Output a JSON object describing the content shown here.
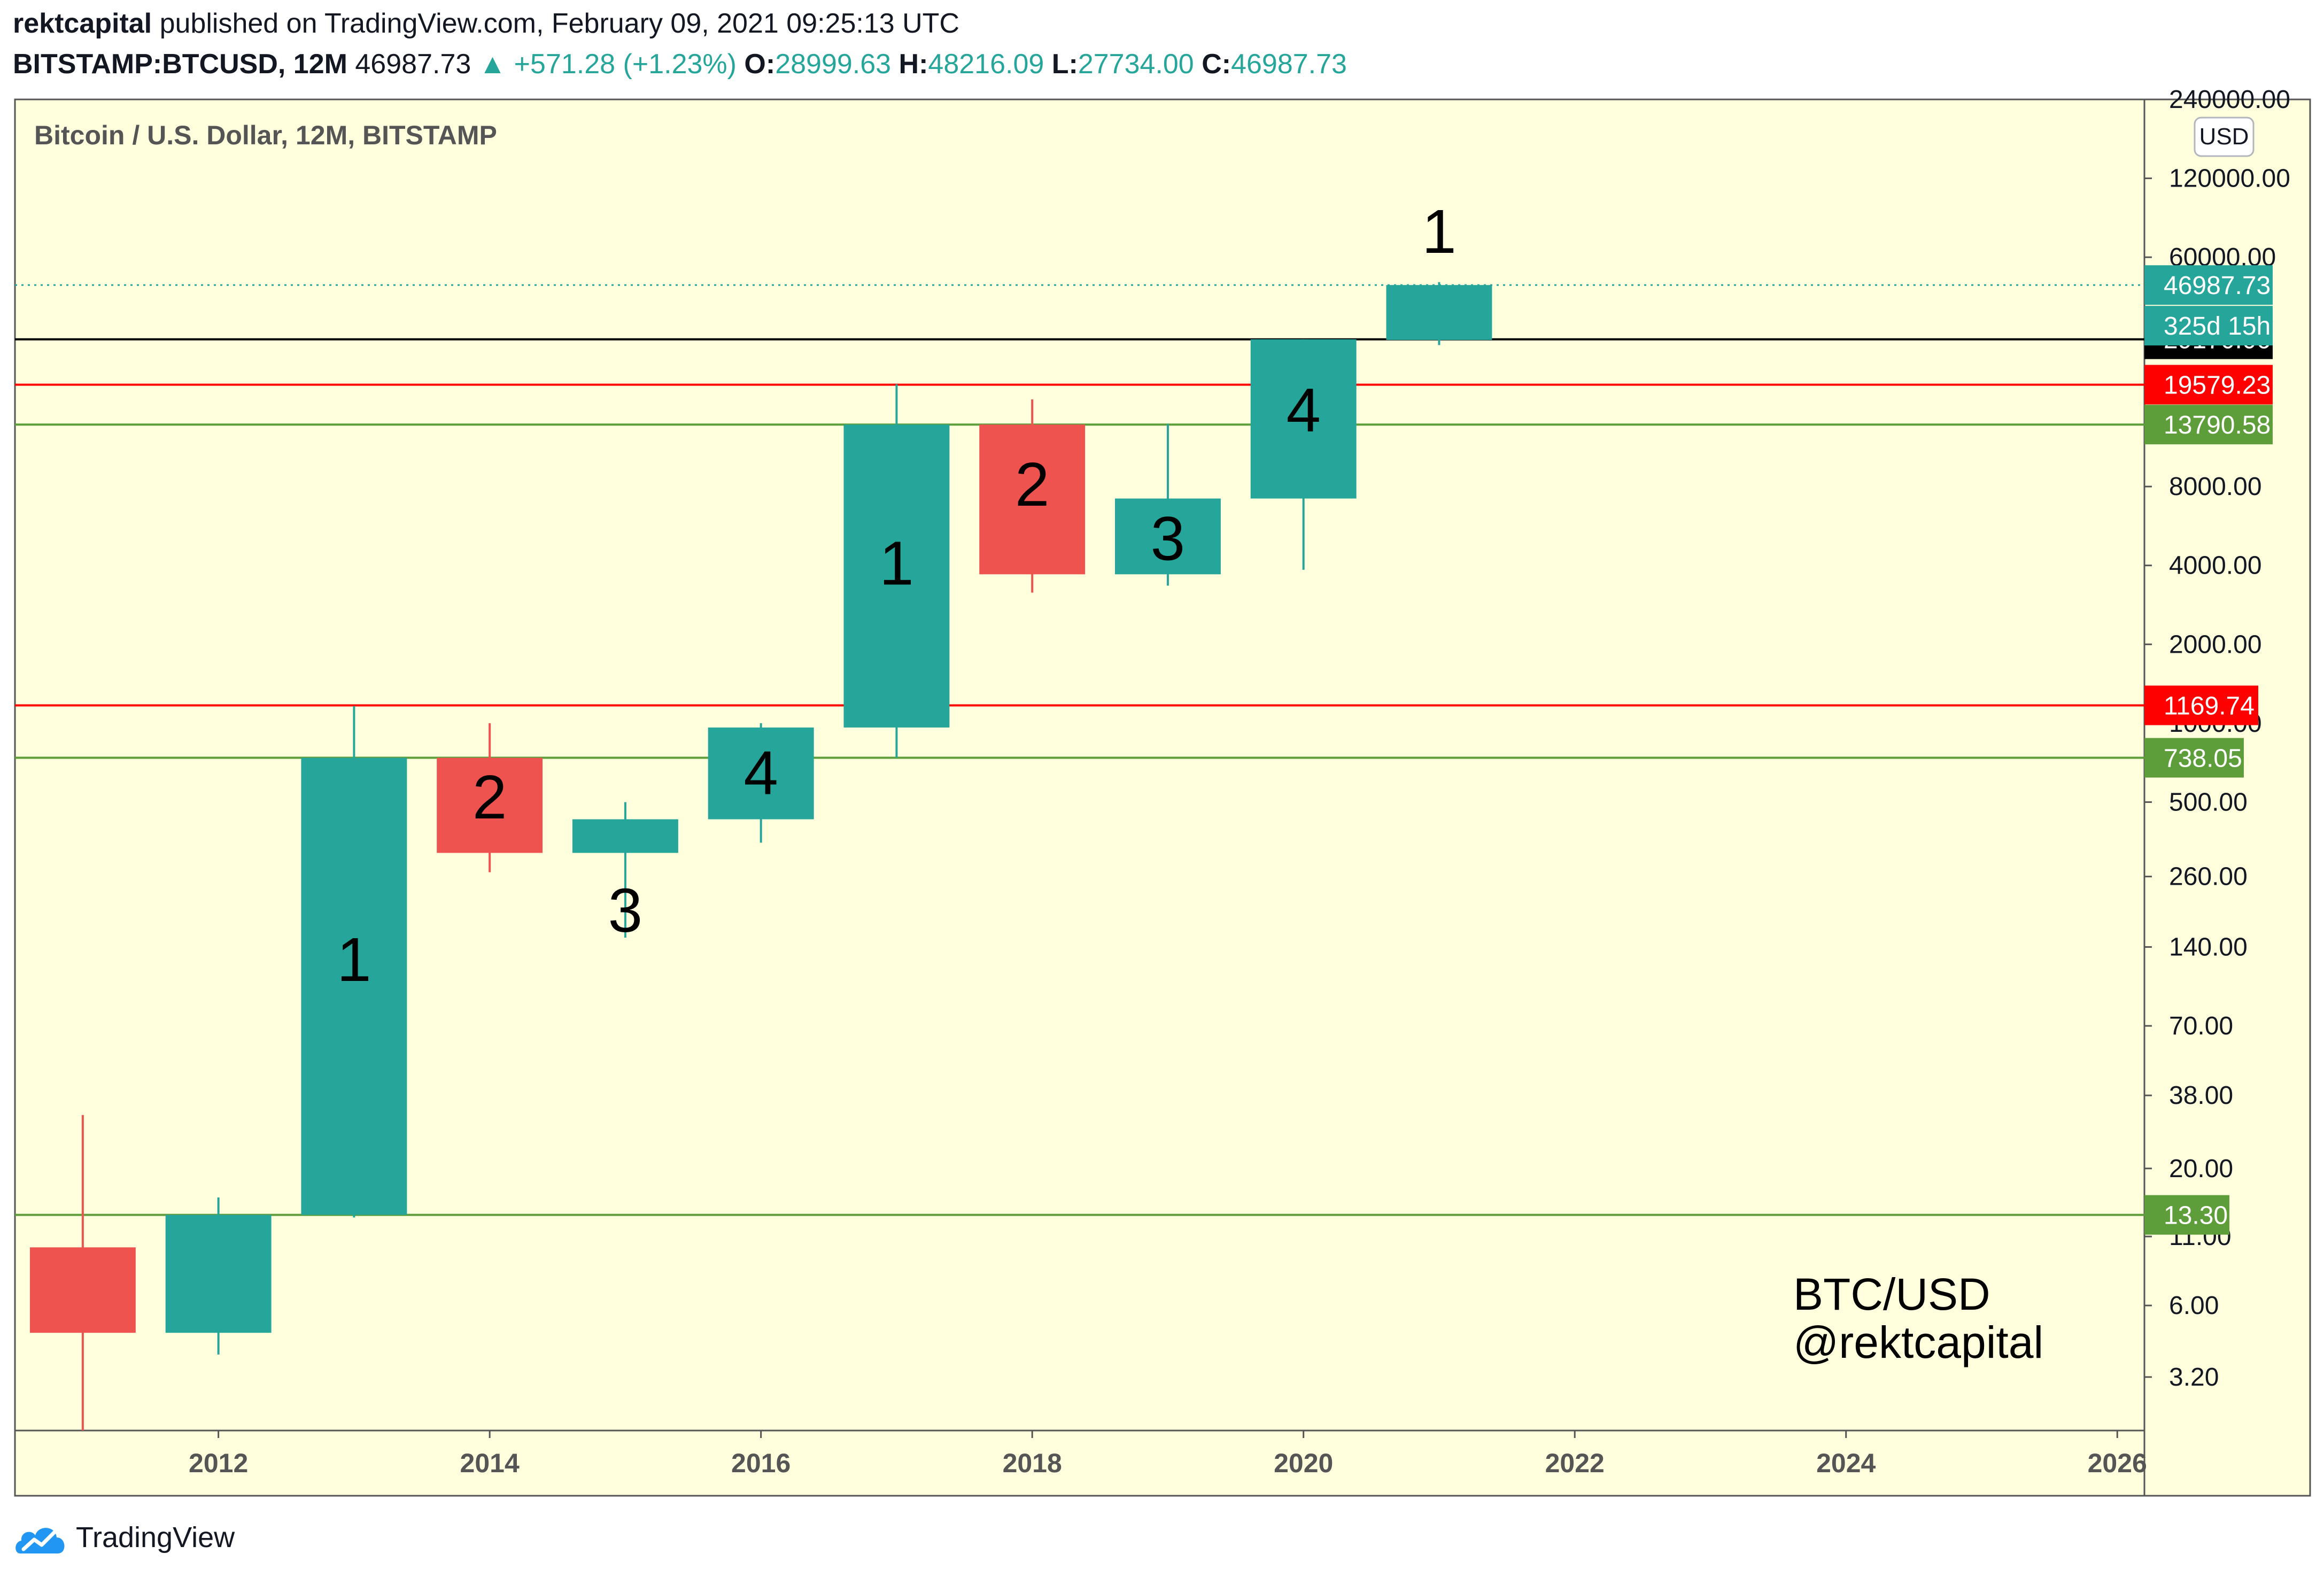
{
  "header": {
    "author": "rektcapital",
    "published_text": " published on TradingView.com, February 09, 2021 09:25:13 UTC",
    "symbol": "BITSTAMP:BTCUSD, 12M",
    "last": "46987.73",
    "change": "+571.28 (+1.23%)",
    "o_label": "O:",
    "o_value": "28999.63",
    "h_label": "H:",
    "h_value": "48216.09",
    "l_label": "L:",
    "l_value": "27734.00",
    "c_label": "C:",
    "c_value": "46987.73"
  },
  "footer": {
    "brand": "TradingView",
    "logo_icon": "tradingview-logo-icon"
  },
  "colors": {
    "background": "#ffffdd",
    "bull": "#26a69a",
    "bear": "#ef5350",
    "support": "#5d9e3b",
    "resistance": "#ff0000",
    "current": "#000000"
  },
  "chart_data": {
    "type": "candlestick",
    "title": "Bitcoin / U.S. Dollar, 12M, BITSTAMP",
    "currency_button": "USD",
    "y_scale": "log",
    "ylim": [
      2.0,
      240000
    ],
    "xlim": [
      2010.5,
      2026.2
    ],
    "y_ticks": [
      "3.20",
      "6.00",
      "11.00",
      "20.00",
      "38.00",
      "70.00",
      "140.00",
      "260.00",
      "500.00",
      "1000.00",
      "2000.00",
      "4000.00",
      "8000.00",
      "60000.00",
      "120000.00",
      "240000.00"
    ],
    "x_ticks": [
      "2012",
      "2014",
      "2016",
      "2018",
      "2020",
      "2022",
      "2024",
      "2026"
    ],
    "candles": [
      {
        "year": 2011,
        "open": 10.0,
        "high": 32.0,
        "low": 2.0,
        "close": 4.72
      },
      {
        "year": 2012,
        "open": 4.72,
        "high": 15.5,
        "low": 3.9,
        "close": 13.3
      },
      {
        "year": 2013,
        "open": 13.3,
        "high": 1163.0,
        "low": 13.0,
        "close": 738.05
      },
      {
        "year": 2014,
        "open": 738.05,
        "high": 1000.0,
        "low": 270.0,
        "close": 320.0
      },
      {
        "year": 2015,
        "open": 320.0,
        "high": 500.0,
        "low": 152.0,
        "close": 430.0
      },
      {
        "year": 2016,
        "open": 430.0,
        "high": 1000.0,
        "low": 350.0,
        "close": 963.0
      },
      {
        "year": 2017,
        "open": 963.0,
        "high": 19666.0,
        "low": 738.0,
        "close": 13790.58
      },
      {
        "year": 2018,
        "open": 13790.58,
        "high": 17200.0,
        "low": 3150.0,
        "close": 3700.0
      },
      {
        "year": 2019,
        "open": 3700.0,
        "high": 13880.0,
        "low": 3350.0,
        "close": 7200.0
      },
      {
        "year": 2020,
        "open": 7200.0,
        "high": 29170.06,
        "low": 3850.0,
        "close": 29170.06
      },
      {
        "year": 2021,
        "open": 28999.63,
        "high": 48216.09,
        "low": 27734.0,
        "close": 46987.73
      }
    ],
    "candle_labels": [
      {
        "year": 2013,
        "text": "1",
        "price": 120.0
      },
      {
        "year": 2014,
        "text": "2",
        "price": 500.0
      },
      {
        "year": 2015,
        "text": "3",
        "price": 185.0
      },
      {
        "year": 2016,
        "text": "4",
        "price": 620.0
      },
      {
        "year": 2017,
        "text": "1",
        "price": 3900.0
      },
      {
        "year": 2018,
        "text": "2",
        "price": 7800.0
      },
      {
        "year": 2019,
        "text": "3",
        "price": 4850.0
      },
      {
        "year": 2020,
        "text": "4",
        "price": 15000.0
      },
      {
        "year": 2021,
        "text": "1",
        "price": 72000.0
      }
    ],
    "horizontal_lines": [
      {
        "value": 46987.73,
        "label": "46987.73",
        "style": "dotted",
        "color": "#26a69a"
      },
      {
        "value": 29170.06,
        "label": "29170.06",
        "style": "solid",
        "color": "#000000"
      },
      {
        "value": 19579.23,
        "label": "19579.23",
        "style": "solid",
        "color": "#ff0000"
      },
      {
        "value": 13790.58,
        "label": "13790.58",
        "style": "solid",
        "color": "#5d9e3b"
      },
      {
        "value": 1169.74,
        "label": "1169.74",
        "style": "solid",
        "color": "#ff0000"
      },
      {
        "value": 738.05,
        "label": "738.05",
        "style": "solid",
        "color": "#5d9e3b"
      },
      {
        "value": 13.3,
        "label": "13.30",
        "style": "solid",
        "color": "#5d9e3b"
      }
    ],
    "countdown_label": "325d 15h",
    "watermark": [
      "BTC/USD",
      "@rektcapital"
    ]
  }
}
